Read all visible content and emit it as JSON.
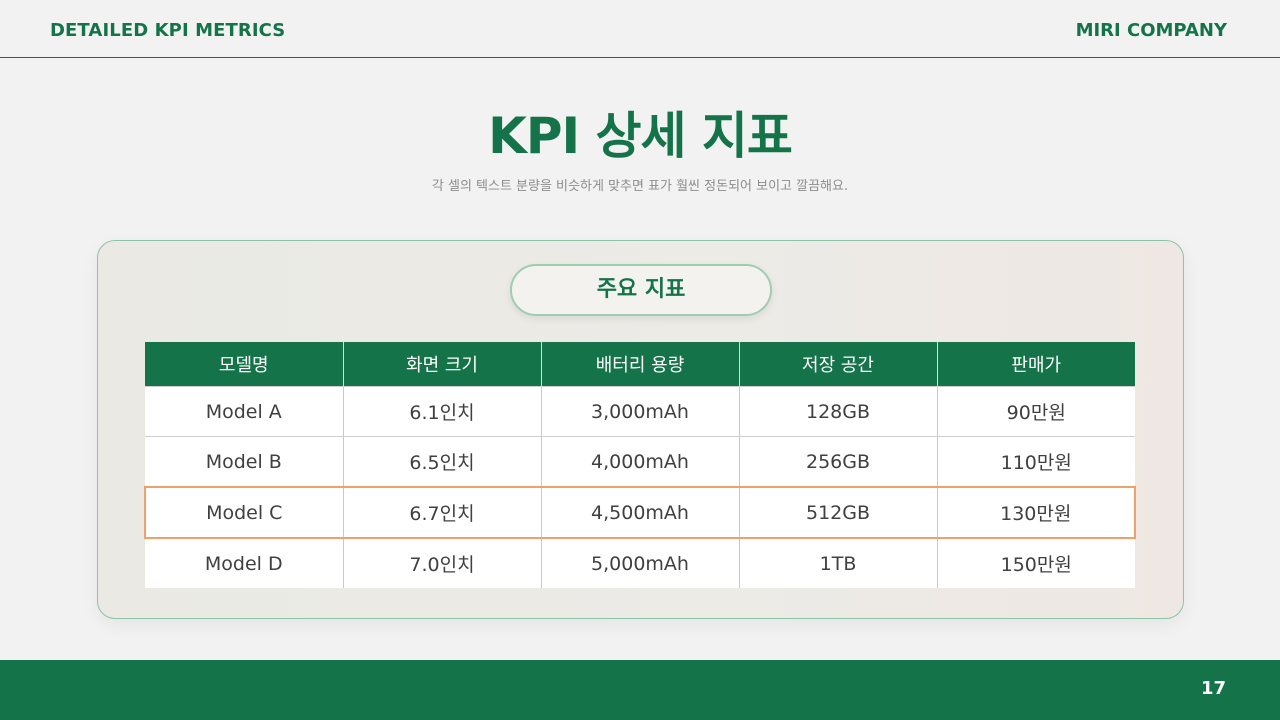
{
  "header": {
    "left_label": "DETAILED KPI METRICS",
    "right_label": "MIRI COMPANY"
  },
  "title": "KPI 상세 지표",
  "subtitle": "각 셀의 텍스트 분량을 비슷하게 맞추면 표가 훨씬 정돈되어 보이고 깔끔해요.",
  "card": {
    "pill_label": "주요 지표",
    "table": {
      "headers": [
        "모델명",
        "화면 크기",
        "배터리 용량",
        "저장 공간",
        "판매가"
      ],
      "rows": [
        [
          "Model A",
          "6.1인치",
          "3,000mAh",
          "128GB",
          "90만원"
        ],
        [
          "Model B",
          "6.5인치",
          "4,000mAh",
          "256GB",
          "110만원"
        ],
        [
          "Model C",
          "6.7인치",
          "4,500mAh",
          "512GB",
          "130만원"
        ],
        [
          "Model D",
          "7.0인치",
          "5,000mAh",
          "1TB",
          "150만원"
        ]
      ],
      "highlighted_row": 2
    }
  },
  "footer": {
    "page_number": "17"
  },
  "colors": {
    "brand_green": "#15734a",
    "highlight_orange": "#f0a06a",
    "background": "#f2f2f2"
  }
}
